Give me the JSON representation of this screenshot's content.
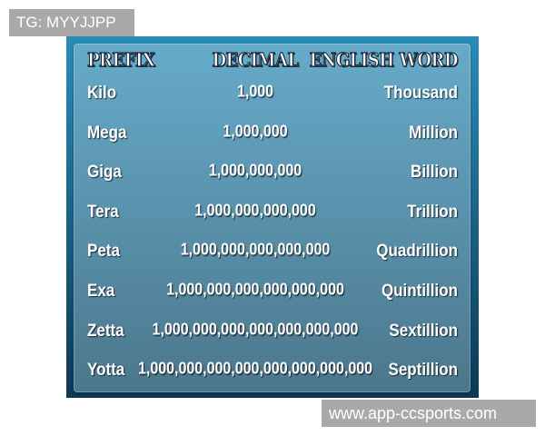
{
  "watermarks": {
    "top_left": "TG: MYYJJPP",
    "bottom_right": "www.app-ccsports.com"
  },
  "colors": {
    "frame": "#1a6a90",
    "panel_top": "#66abca",
    "panel_bottom": "#4c778c",
    "text": "#ffffff",
    "watermark_bg": "#a9a9a9"
  },
  "table": {
    "headers": [
      "PREFIX",
      "DECIMAL",
      "ENGLISH WORD"
    ],
    "rows": [
      [
        "Kilo",
        "1,000",
        "Thousand"
      ],
      [
        "Mega",
        "1,000,000",
        "Million"
      ],
      [
        "Giga",
        "1,000,000,000",
        "Billion"
      ],
      [
        "Tera",
        "1,000,000,000,000",
        "Trillion"
      ],
      [
        "Peta",
        "1,000,000,000,000,000",
        "Quadrillion"
      ],
      [
        "Exa",
        "1,000,000,000,000,000,000",
        "Quintillion"
      ],
      [
        "Zetta",
        "1,000,000,000,000,000,000,000",
        "Sextillion"
      ],
      [
        "Yotta",
        "1,000,000,000,000,000,000,000,000",
        "Septillion"
      ]
    ]
  }
}
